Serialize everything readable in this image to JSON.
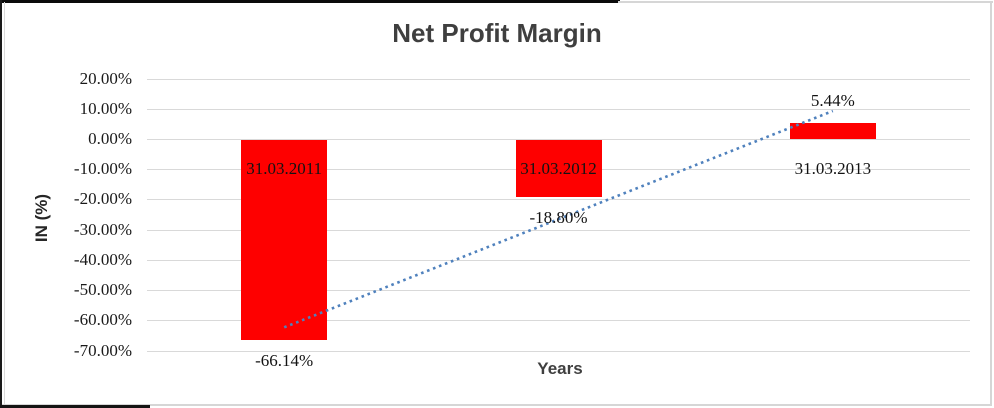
{
  "chart_data": {
    "type": "bar",
    "title": "Net Profit Margin",
    "xlabel": "Years",
    "ylabel": "IN (%)",
    "categories": [
      "31.03.2011",
      "31.03.2012",
      "31.03.2013"
    ],
    "values": [
      -66.14,
      -18.8,
      5.44
    ],
    "data_labels": [
      "-66.14%",
      "-18.80%",
      "5.44%"
    ],
    "y_ticks": [
      20,
      10,
      0,
      -10,
      -20,
      -30,
      -40,
      -50,
      -60,
      -70
    ],
    "y_tick_labels": [
      "20.00%",
      "10.00%",
      "0.00%",
      "-10.00%",
      "-20.00%",
      "-30.00%",
      "-40.00%",
      "-50.00%",
      "-60.00%",
      "-70.00%"
    ],
    "ylim": [
      -70,
      20
    ],
    "grid": true,
    "legend": false,
    "category_label_value_position": -10,
    "trendline": {
      "type": "linear",
      "style": "dotted",
      "endpoint_values": [
        -62.32,
        9.27
      ]
    }
  },
  "colors": {
    "bar_fill": "#fe0000",
    "trendline": "#4f81bd",
    "gridline": "#d9d9d9",
    "title_text": "#3f3f3f",
    "tick_text": "#1a1a1a",
    "frame_black": "#0b0b0b",
    "frame_gray": "#d6d6d6"
  }
}
